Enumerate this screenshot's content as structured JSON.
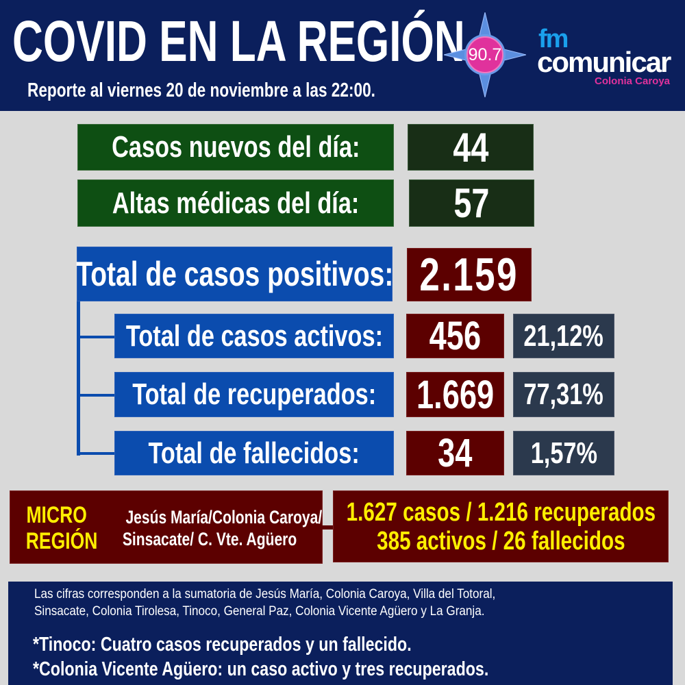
{
  "header": {
    "title": "COVID EN LA REGIÓN",
    "subtitle": "Reporte al viernes 20 de noviembre a las 22:00.",
    "logo": {
      "frequency": "90.7",
      "brand_top": "fm",
      "brand_main": "comunicar",
      "brand_sub": "Colonia Caroya"
    }
  },
  "daily": [
    {
      "label": "Casos nuevos del día:",
      "value": "44"
    },
    {
      "label": "Altas médicas del día:",
      "value": "57"
    }
  ],
  "total": {
    "label": "Total de casos positivos:",
    "value": "2.159"
  },
  "breakdown": [
    {
      "label": "Total de casos activos:",
      "value": "456",
      "percent": "21,12%"
    },
    {
      "label": "Total de recuperados:",
      "value": "1.669",
      "percent": "77,31%"
    },
    {
      "label": "Total de fallecidos:",
      "value": "34",
      "percent": "1,57%"
    }
  ],
  "micro": {
    "title_line1": "MICRO",
    "title_line2": "REGIÓN",
    "places_line1": "Jesús María/Colonia Caroya/",
    "places_line2": "Sinsacate/ C. Vte. Agüero",
    "stats_line1": "1.627 casos / 1.216 recuperados",
    "stats_line2": "385 activos  / 26 fallecidos"
  },
  "footer": {
    "note_line1": "Las cifras corresponden a la sumatoria de Jesús María, Colonia Caroya, Villa del Totoral,",
    "note_line2": "Sinsacate, Colonia Tirolesa, Tinoco, General Paz, Colonia Vicente Agüero  y La Granja.",
    "extra1": "*Tinoco: Cuatro casos recuperados y un fallecido.",
    "extra2": "*Colonia Vicente Agüero: un caso activo y tres recuperados."
  },
  "colors": {
    "header": "#0b1f5c",
    "green": "#0e4f13",
    "blue": "#0b4cae",
    "red": "#5c0000",
    "slate": "#2b394d",
    "yellow": "#ffef00",
    "pink": "#e0329c"
  }
}
